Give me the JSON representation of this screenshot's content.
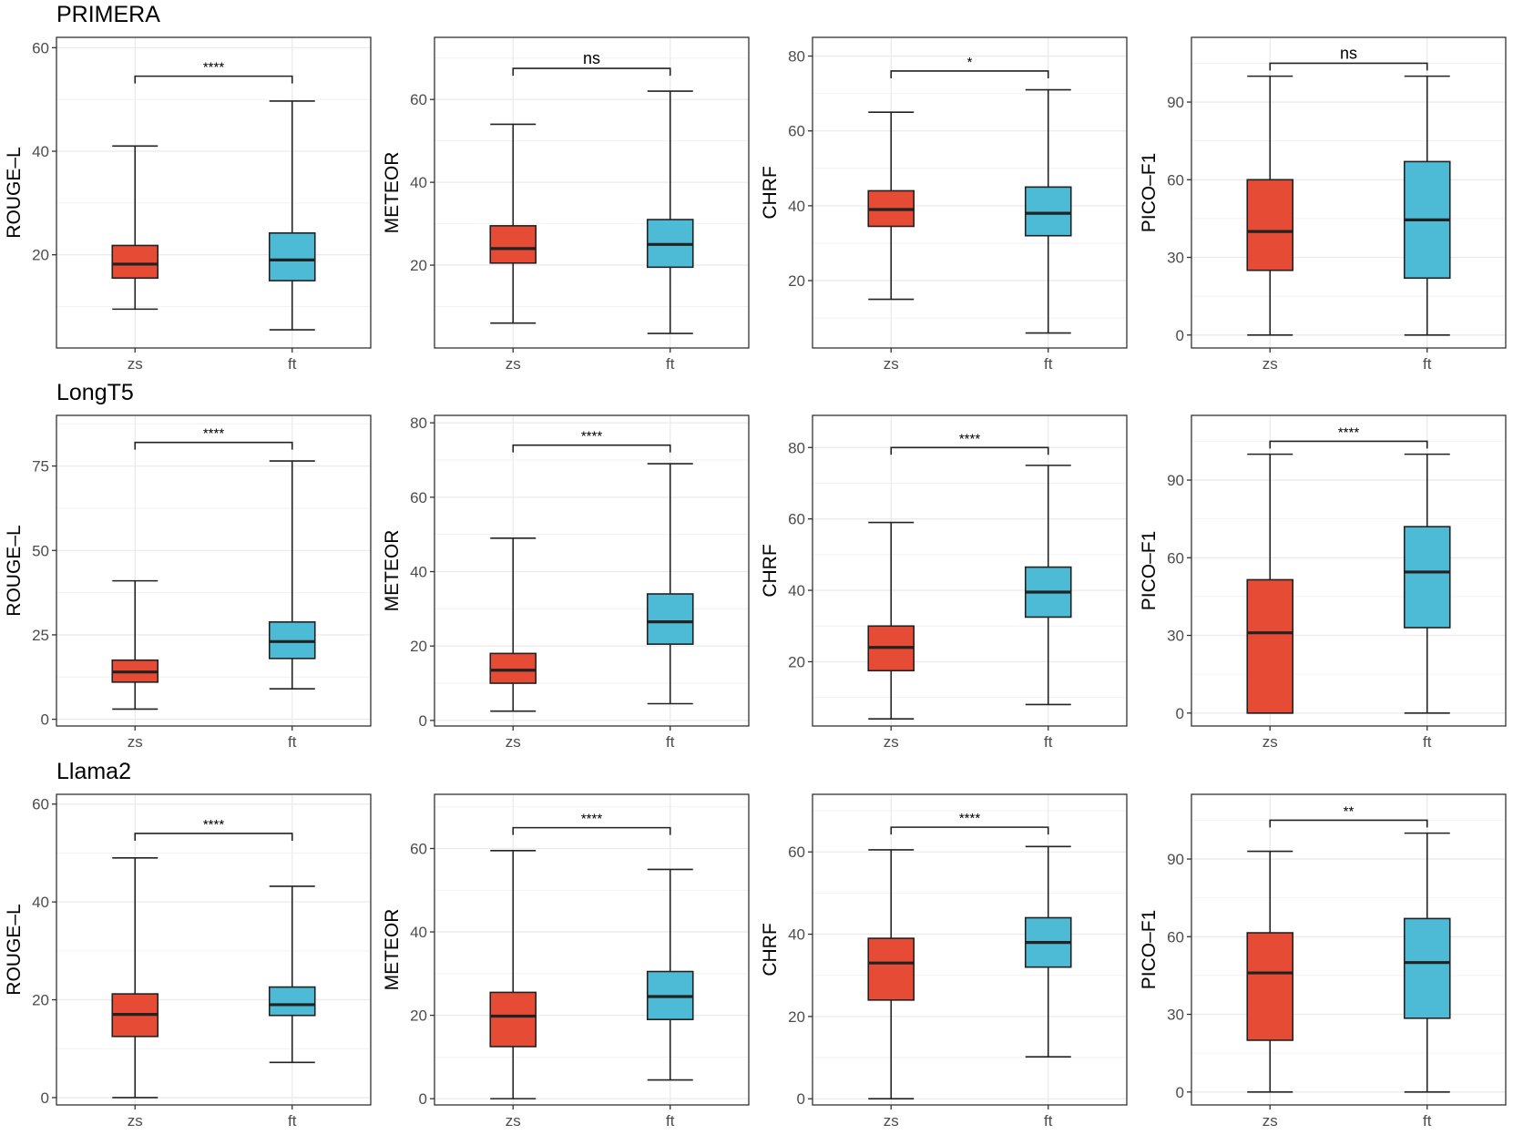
{
  "colors": {
    "zs": "#E64B35",
    "ft": "#4DBBD5",
    "grid": "#EBEBEB",
    "panel_border": "#333333",
    "text": "#4D4D4D"
  },
  "chart_data": [
    {
      "title": "PRIMERA",
      "panels": [
        {
          "type": "box",
          "ylabel": "ROUGE–L",
          "ylim": [
            2,
            62
          ],
          "yticks": [
            20,
            40,
            60
          ],
          "categories": [
            "zs",
            "ft"
          ],
          "boxes": [
            {
              "name": "zs",
              "min": 9.5,
              "q1": 15.5,
              "median": 18.2,
              "q3": 21.8,
              "max": 41
            },
            {
              "name": "ft",
              "min": 5.5,
              "q1": 15,
              "median": 19,
              "q3": 24.2,
              "max": 49.7
            }
          ],
          "significance": {
            "label": "****",
            "y": 54.5
          }
        },
        {
          "type": "box",
          "ylabel": "METEOR",
          "ylim": [
            0,
            75
          ],
          "yticks": [
            20,
            40,
            60
          ],
          "categories": [
            "zs",
            "ft"
          ],
          "boxes": [
            {
              "name": "zs",
              "min": 6,
              "q1": 20.5,
              "median": 24,
              "q3": 29.5,
              "max": 54
            },
            {
              "name": "ft",
              "min": 3.5,
              "q1": 19.5,
              "median": 25,
              "q3": 31,
              "max": 62
            }
          ],
          "significance": {
            "label": "ns",
            "y": 67.5
          }
        },
        {
          "type": "box",
          "ylabel": "CHRF",
          "ylim": [
            2,
            85
          ],
          "yticks": [
            20,
            40,
            60,
            80
          ],
          "categories": [
            "zs",
            "ft"
          ],
          "boxes": [
            {
              "name": "zs",
              "min": 15,
              "q1": 34.5,
              "median": 39,
              "q3": 44,
              "max": 65
            },
            {
              "name": "ft",
              "min": 6,
              "q1": 32,
              "median": 38,
              "q3": 45,
              "max": 71
            }
          ],
          "significance": {
            "label": "*",
            "y": 76
          }
        },
        {
          "type": "box",
          "ylabel": "PICO–F1",
          "ylim": [
            -5,
            115
          ],
          "yticks": [
            0,
            30,
            60,
            90
          ],
          "categories": [
            "zs",
            "ft"
          ],
          "boxes": [
            {
              "name": "zs",
              "min": 0,
              "q1": 25,
              "median": 40,
              "q3": 60,
              "max": 100
            },
            {
              "name": "ft",
              "min": 0,
              "q1": 22,
              "median": 44.5,
              "q3": 67,
              "max": 100
            }
          ],
          "significance": {
            "label": "ns",
            "y": 105
          }
        }
      ]
    },
    {
      "title": "LongT5",
      "panels": [
        {
          "type": "box",
          "ylabel": "ROUGE–L",
          "ylim": [
            -2,
            90
          ],
          "yticks": [
            0,
            25,
            50,
            75
          ],
          "categories": [
            "zs",
            "ft"
          ],
          "boxes": [
            {
              "name": "zs",
              "min": 3,
              "q1": 11,
              "median": 14,
              "q3": 17.5,
              "max": 41
            },
            {
              "name": "ft",
              "min": 9,
              "q1": 18,
              "median": 23,
              "q3": 28.8,
              "max": 76.5
            }
          ],
          "significance": {
            "label": "****",
            "y": 82
          }
        },
        {
          "type": "box",
          "ylabel": "METEOR",
          "ylim": [
            -1.5,
            82
          ],
          "yticks": [
            0,
            20,
            40,
            60,
            80
          ],
          "categories": [
            "zs",
            "ft"
          ],
          "boxes": [
            {
              "name": "zs",
              "min": 2.5,
              "q1": 10,
              "median": 13.5,
              "q3": 18,
              "max": 49
            },
            {
              "name": "ft",
              "min": 4.5,
              "q1": 20.5,
              "median": 26.5,
              "q3": 34,
              "max": 69
            }
          ],
          "significance": {
            "label": "****",
            "y": 74
          }
        },
        {
          "type": "box",
          "ylabel": "CHRF",
          "ylim": [
            2,
            89
          ],
          "yticks": [
            20,
            40,
            60,
            80
          ],
          "categories": [
            "zs",
            "ft"
          ],
          "boxes": [
            {
              "name": "zs",
              "min": 4,
              "q1": 17.5,
              "median": 24,
              "q3": 30,
              "max": 59
            },
            {
              "name": "ft",
              "min": 8,
              "q1": 32.5,
              "median": 39.5,
              "q3": 46.5,
              "max": 75
            }
          ],
          "significance": {
            "label": "****",
            "y": 80
          }
        },
        {
          "type": "box",
          "ylabel": "PICO–F1",
          "ylim": [
            -5,
            115
          ],
          "yticks": [
            0,
            30,
            60,
            90
          ],
          "categories": [
            "zs",
            "ft"
          ],
          "boxes": [
            {
              "name": "zs",
              "min": 0,
              "q1": 0,
              "median": 31,
              "q3": 51.5,
              "max": 100
            },
            {
              "name": "ft",
              "min": 0,
              "q1": 33,
              "median": 54.5,
              "q3": 72,
              "max": 100
            }
          ],
          "significance": {
            "label": "****",
            "y": 105
          }
        }
      ]
    },
    {
      "title": "Llama2",
      "panels": [
        {
          "type": "box",
          "ylabel": "ROUGE–L",
          "ylim": [
            -1.5,
            62
          ],
          "yticks": [
            0,
            20,
            40,
            60
          ],
          "categories": [
            "zs",
            "ft"
          ],
          "boxes": [
            {
              "name": "zs",
              "min": 0,
              "q1": 12.5,
              "median": 17,
              "q3": 21.2,
              "max": 49
            },
            {
              "name": "ft",
              "min": 7.2,
              "q1": 16.8,
              "median": 19,
              "q3": 22.6,
              "max": 43.2
            }
          ],
          "significance": {
            "label": "****",
            "y": 54
          }
        },
        {
          "type": "box",
          "ylabel": "METEOR",
          "ylim": [
            -1.5,
            73
          ],
          "yticks": [
            0,
            20,
            40,
            60
          ],
          "categories": [
            "zs",
            "ft"
          ],
          "boxes": [
            {
              "name": "zs",
              "min": 0,
              "q1": 12.5,
              "median": 19.8,
              "q3": 25.5,
              "max": 59.5
            },
            {
              "name": "ft",
              "min": 4.5,
              "q1": 19,
              "median": 24.5,
              "q3": 30.5,
              "max": 55
            }
          ],
          "significance": {
            "label": "****",
            "y": 65
          }
        },
        {
          "type": "box",
          "ylabel": "CHRF",
          "ylim": [
            -1.5,
            74
          ],
          "yticks": [
            0,
            20,
            40,
            60
          ],
          "categories": [
            "zs",
            "ft"
          ],
          "boxes": [
            {
              "name": "zs",
              "min": 0,
              "q1": 24,
              "median": 33,
              "q3": 39,
              "max": 60.5
            },
            {
              "name": "ft",
              "min": 10.2,
              "q1": 32,
              "median": 38,
              "q3": 44,
              "max": 61.3
            }
          ],
          "significance": {
            "label": "****",
            "y": 66
          }
        },
        {
          "type": "box",
          "ylabel": "PICO–F1",
          "ylim": [
            -5,
            115
          ],
          "yticks": [
            0,
            30,
            60,
            90
          ],
          "categories": [
            "zs",
            "ft"
          ],
          "boxes": [
            {
              "name": "zs",
              "min": 0,
              "q1": 20,
              "median": 46,
              "q3": 61.5,
              "max": 93
            },
            {
              "name": "ft",
              "min": 0,
              "q1": 28.5,
              "median": 50,
              "q3": 67,
              "max": 100
            }
          ],
          "significance": {
            "label": "**",
            "y": 105
          }
        }
      ]
    }
  ]
}
